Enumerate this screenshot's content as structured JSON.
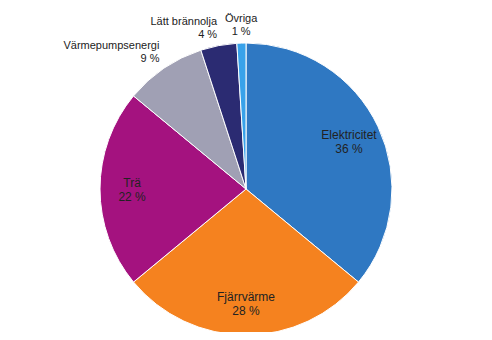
{
  "chart_data": {
    "type": "pie",
    "categories": [
      "Elektricitet",
      "Fjärrvärme",
      "Trä",
      "Värmepumpsenergi",
      "Lätt brännolja",
      "Övriga"
    ],
    "values": [
      36,
      28,
      22,
      9,
      4,
      1
    ],
    "value_labels": [
      "36 %",
      "28 %",
      "22 %",
      "9 %",
      "4 %",
      "1 %"
    ],
    "colors": [
      "#2f78c2",
      "#f5821f",
      "#a4127f",
      "#a0a0b4",
      "#2b2b72",
      "#38a2ea"
    ],
    "data_labels": true
  }
}
